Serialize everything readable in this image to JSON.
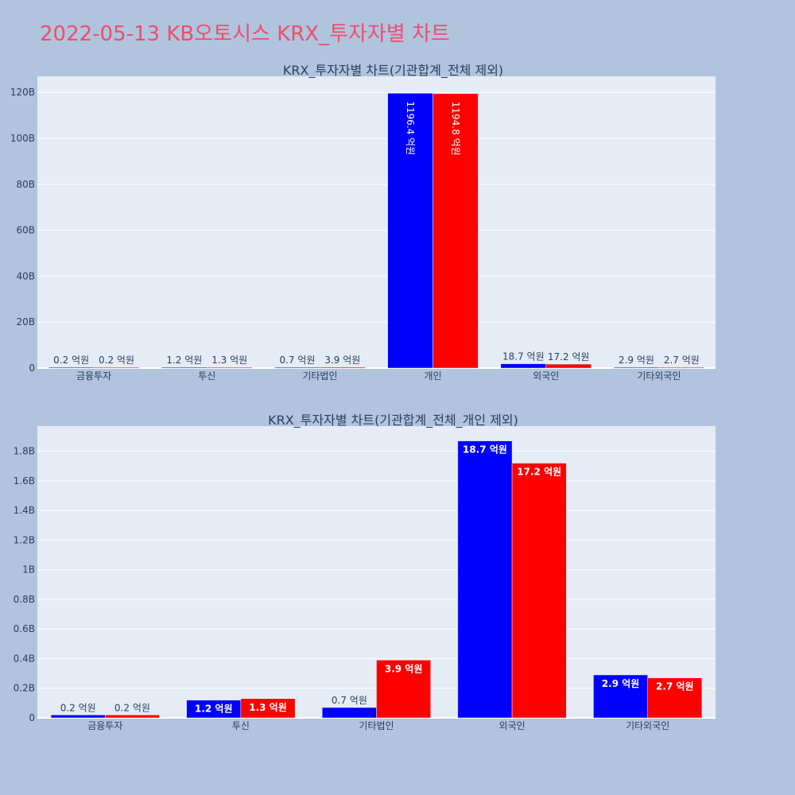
{
  "page": {
    "title": "2022-05-13 KB오토시스 KRX_투자자별 차트"
  },
  "colors": {
    "background": "#b0c4de",
    "plot_bg": "#e5ecf6",
    "grid": "#ffffff",
    "title": "#ef4e6b",
    "axis_text": "#2a3f5f",
    "series_a": "#0000ff",
    "series_b": "#ff0000"
  },
  "chart_data": [
    {
      "type": "bar",
      "title": "KRX_투자자별 차트(기관합계_전체 제외)",
      "categories": [
        "금융투자",
        "투신",
        "기타법인",
        "개인",
        "외국인",
        "기타외국인"
      ],
      "series": [
        {
          "color": "#0000ff",
          "values": [
            0.02,
            0.12,
            0.07,
            119.64,
            1.87,
            0.29
          ],
          "labels": [
            "0.2 억원",
            "1.2 억원",
            "0.7 억원",
            "1196.4 억원",
            "18.7 억원",
            "2.9 억원"
          ]
        },
        {
          "color": "#ff0000",
          "values": [
            0.02,
            0.13,
            0.39,
            119.48,
            1.72,
            0.27
          ],
          "labels": [
            "0.2 억원",
            "1.3 억원",
            "3.9 억원",
            "1194.8 억원",
            "17.2 억원",
            "2.7 억원"
          ]
        }
      ],
      "ylim": [
        0,
        127
      ],
      "yticks": [
        0,
        20,
        40,
        60,
        80,
        100,
        120
      ],
      "yticklabels": [
        "0",
        "20B",
        "40B",
        "60B",
        "80B",
        "100B",
        "120B"
      ],
      "grid": true
    },
    {
      "type": "bar",
      "title": "KRX_투자자별 차트(기관합계_전체_개인 제외)",
      "categories": [
        "금융투자",
        "투신",
        "기타법인",
        "외국인",
        "기타외국인"
      ],
      "series": [
        {
          "color": "#0000ff",
          "values": [
            0.02,
            0.12,
            0.07,
            1.87,
            0.29
          ],
          "labels": [
            "0.2 억원",
            "1.2 억원",
            "0.7 억원",
            "18.7 억원",
            "2.9 억원"
          ]
        },
        {
          "color": "#ff0000",
          "values": [
            0.02,
            0.13,
            0.39,
            1.72,
            0.27
          ],
          "labels": [
            "0.2 억원",
            "1.3 억원",
            "3.9 억원",
            "17.2 억원",
            "2.7 억원"
          ]
        }
      ],
      "ylim": [
        0,
        1.97
      ],
      "yticks": [
        0,
        0.2,
        0.4,
        0.6,
        0.8,
        1,
        1.2,
        1.4,
        1.6,
        1.8
      ],
      "yticklabels": [
        "0",
        "0.2B",
        "0.4B",
        "0.6B",
        "0.8B",
        "1B",
        "1.2B",
        "1.4B",
        "1.6B",
        "1.8B"
      ],
      "grid": true
    }
  ]
}
